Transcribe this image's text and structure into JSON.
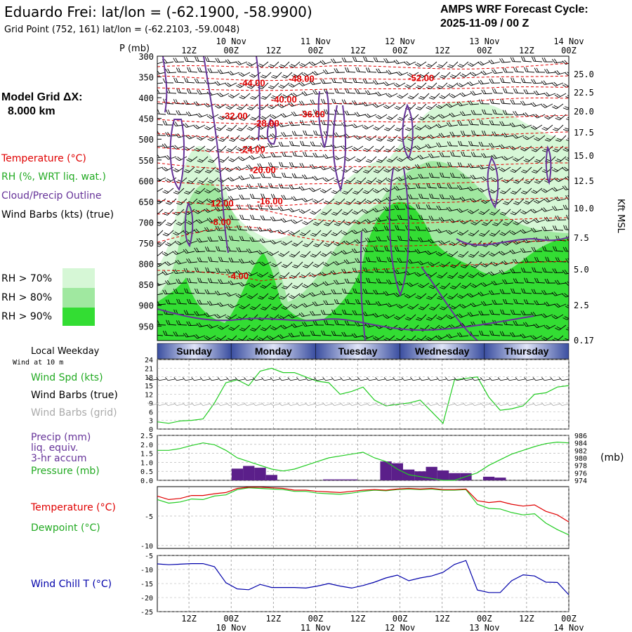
{
  "header": {
    "title": "Eduardo Frei:  lat/lon = (-62.1900, -58.9900)",
    "subtitle": "Grid Point (752, 161) lat/lon = (-62.2103, -59.0048)",
    "cycle_line1": "AMPS WRF Forecast Cycle:",
    "cycle_line2": "2025-11-09 / 00  Z"
  },
  "model_grid": {
    "label": "Model Grid ΔX:",
    "value": "8.000 km"
  },
  "legend": {
    "temperature": "Temperature (°C)",
    "rh": "RH (%, WRT liq. wat.)",
    "cloud": "Cloud/Precip Outline",
    "wind_barbs": "Wind Barbs (kts) (true)",
    "rh70": "RH > 70%",
    "rh80": "RH > 80%",
    "rh90": "RH > 90%",
    "rh_colors": [
      "#d6f7d6",
      "#a0e8a0",
      "#33dd33"
    ]
  },
  "time_axis": {
    "top_hours": [
      "12Z",
      "00Z",
      "12Z",
      "00Z",
      "12Z",
      "00Z",
      "12Z",
      "00Z",
      "12Z",
      "00Z"
    ],
    "top_dates": [
      "10 Nov",
      "11 Nov",
      "12 Nov",
      "13 Nov",
      "14 Nov"
    ],
    "bottom_hours": [
      "12Z",
      "00Z",
      "12Z",
      "00Z",
      "12Z",
      "00Z",
      "12Z",
      "00Z",
      "12Z",
      "00Z"
    ],
    "bottom_dates": [
      "10 Nov",
      "11 Nov",
      "12 Nov",
      "13 Nov",
      "14 Nov"
    ]
  },
  "weekday": {
    "title": "Local Weekday",
    "wind_note": "Wind at 10 m",
    "days": [
      "Sunday",
      "Monday",
      "Tuesday",
      "Wednesday",
      "Thursday"
    ]
  },
  "panels": {
    "wind": {
      "spd_label": "Wind Spd (kts)",
      "barbs_true": "Wind Barbs (true)",
      "barbs_grid": "Wind Barbs (grid)"
    },
    "precip": {
      "precip_label": "Precip (mm)",
      "liq_label": "liq. equiv.",
      "accum_label": "3-hr accum",
      "pressure_label": "Pressure (mb)",
      "units_right": "(mb)"
    },
    "temp": {
      "temp_label": "Temperature (°C)",
      "dew_label": "Dewpoint (°C)"
    },
    "chill": {
      "label": "Wind Chill T (°C)"
    }
  },
  "colors": {
    "temperature": "#e00000",
    "rh_line": "#22cc22",
    "cloud": "#663399",
    "grid_barbs": "#aaaaaa",
    "chill": "#0000aa",
    "precip_bar": "#5b1f8a",
    "day_band": "#3a4ea0"
  },
  "chart_data": [
    {
      "type": "area",
      "name_ref": "vertical-cross-section",
      "y_left_label": "P (mb)",
      "y_left_ticks": [
        "300",
        "350",
        "400",
        "450",
        "500",
        "550",
        "600",
        "650",
        "700",
        "750",
        "800",
        "850",
        "900",
        "950"
      ],
      "y_right_label": "Kft MSL",
      "y_right_ticks": [
        "25.0",
        "22.5",
        "20.0",
        "17.5",
        "15.0",
        "12.5",
        "10.0",
        "7.5",
        "5.0",
        "2.5",
        "0.17"
      ],
      "temperature_labels": [
        {
          "text": "-44.00",
          "hour": 30,
          "p": 365
        },
        {
          "text": "-48.00",
          "hour": 44,
          "p": 355
        },
        {
          "text": "-52.00",
          "hour": 78,
          "p": 353
        },
        {
          "text": "-40.00",
          "hour": 39,
          "p": 405
        },
        {
          "text": "-32.00",
          "hour": 25,
          "p": 445
        },
        {
          "text": "-28.00",
          "hour": 34,
          "p": 462
        },
        {
          "text": "-36.00",
          "hour": 47,
          "p": 440
        },
        {
          "text": "-24.00",
          "hour": 30,
          "p": 525
        },
        {
          "text": "-20.00",
          "hour": 33,
          "p": 575
        },
        {
          "text": "-16.00",
          "hour": 35,
          "p": 650
        },
        {
          "text": "-12.00",
          "hour": 21,
          "p": 655
        },
        {
          "text": "-8.00",
          "hour": 21,
          "p": 700
        },
        {
          "text": "-4.00",
          "hour": 26,
          "p": 830
        }
      ]
    },
    {
      "type": "line",
      "name_ref": "wind-speed",
      "y_ticks": [
        "24",
        "21",
        "18",
        "15",
        "12",
        "9",
        "6",
        "3",
        "0"
      ],
      "ylim": [
        0,
        24
      ],
      "series": [
        {
          "values": [
            2.5,
            2.0,
            2.8,
            3.0,
            3.5,
            9.0,
            16.0,
            17.0,
            15.0,
            20.0,
            21.0,
            19.5,
            19.5,
            18.0,
            16.5,
            16.0,
            12.0,
            13.0,
            14.5,
            10.0,
            8.0,
            8.5,
            9.0,
            10.0,
            6.0,
            2.0,
            17.0,
            17.5,
            18.0,
            11.0,
            6.5,
            7.0,
            8.0,
            12.0,
            12.5,
            14.5,
            15.0
          ]
        }
      ]
    },
    {
      "type": "bar",
      "name_ref": "precip-pressure",
      "y_left_ticks": [
        "2.5",
        "2.0",
        "1.5",
        "1.0",
        "0.5",
        "0.0"
      ],
      "y_right_ticks": [
        "986",
        "984",
        "982",
        "980",
        "978",
        "976",
        "974"
      ],
      "ylim": [
        0,
        2.5
      ],
      "y2lim": [
        974,
        986
      ],
      "precip": [
        0,
        0,
        0,
        0,
        0,
        0,
        0,
        0.65,
        0.8,
        0.7,
        0.3,
        0,
        0,
        0,
        0,
        0.05,
        0.05,
        0.05,
        0,
        0,
        1.05,
        0.95,
        0.6,
        0.5,
        0.75,
        0.55,
        0.4,
        0.4,
        0,
        0.2,
        0.15,
        0,
        0,
        0,
        0,
        0,
        0
      ],
      "pressure": [
        982,
        982,
        982.5,
        983.3,
        984,
        983.5,
        982,
        980,
        979,
        978,
        977,
        976.5,
        977,
        978,
        979,
        980,
        980.5,
        981,
        981.5,
        980,
        979,
        977,
        975.5,
        975,
        974.5,
        974,
        974,
        975,
        976,
        978,
        979.5,
        981,
        982,
        983,
        983.8,
        984.2,
        984
      ]
    },
    {
      "type": "line",
      "name_ref": "temperature-dewpoint",
      "y_ticks": [
        "-5",
        "-10"
      ],
      "ylim": [
        -10.5,
        0
      ],
      "series": [
        {
          "name_ref": "temperature",
          "values": [
            -1.6,
            -2.2,
            -2.0,
            -1.5,
            -1.5,
            -1.2,
            -1.0,
            -0.3,
            -0.1,
            -0.1,
            -0.2,
            -0.3,
            -0.6,
            -0.6,
            -0.8,
            -0.9,
            -1.0,
            -0.8,
            -0.6,
            -0.5,
            -0.6,
            -0.4,
            -0.3,
            -0.4,
            -0.3,
            -0.5,
            -0.5,
            -0.4,
            -2.4,
            -2.7,
            -2.5,
            -3.0,
            -3.3,
            -3.1,
            -4.2,
            -4.8,
            -6.0
          ]
        },
        {
          "name_ref": "dewpoint",
          "values": [
            -2.2,
            -2.8,
            -2.6,
            -2.1,
            -2.2,
            -1.6,
            -1.4,
            -0.5,
            -0.2,
            -0.3,
            -0.4,
            -0.5,
            -0.8,
            -0.8,
            -1.1,
            -1.2,
            -1.3,
            -1.1,
            -0.8,
            -0.6,
            -0.7,
            -0.5,
            -0.4,
            -0.5,
            -0.4,
            -0.6,
            -0.6,
            -0.5,
            -3.0,
            -3.7,
            -3.8,
            -4.4,
            -4.8,
            -4.6,
            -6.2,
            -7.3,
            -8.2
          ]
        }
      ]
    },
    {
      "type": "line",
      "name_ref": "wind-chill",
      "y_ticks": [
        "-5",
        "-10",
        "-15",
        "-20",
        "-25"
      ],
      "ylim": [
        -25,
        -5
      ],
      "series": [
        {
          "values": [
            -8.0,
            -8.3,
            -8.1,
            -7.9,
            -7.9,
            -9.0,
            -14.7,
            -16.9,
            -17.2,
            -15.3,
            -16.4,
            -16.4,
            -16.4,
            -16.6,
            -15.9,
            -15.0,
            -15.9,
            -16.6,
            -15.7,
            -14.5,
            -13.0,
            -12.0,
            -14.0,
            -13.0,
            -12.3,
            -11.0,
            -8.2,
            -6.8,
            -17.3,
            -18.2,
            -18.2,
            -14.0,
            -11.9,
            -12.3,
            -14.5,
            -14.6,
            -19.0
          ]
        }
      ]
    }
  ]
}
